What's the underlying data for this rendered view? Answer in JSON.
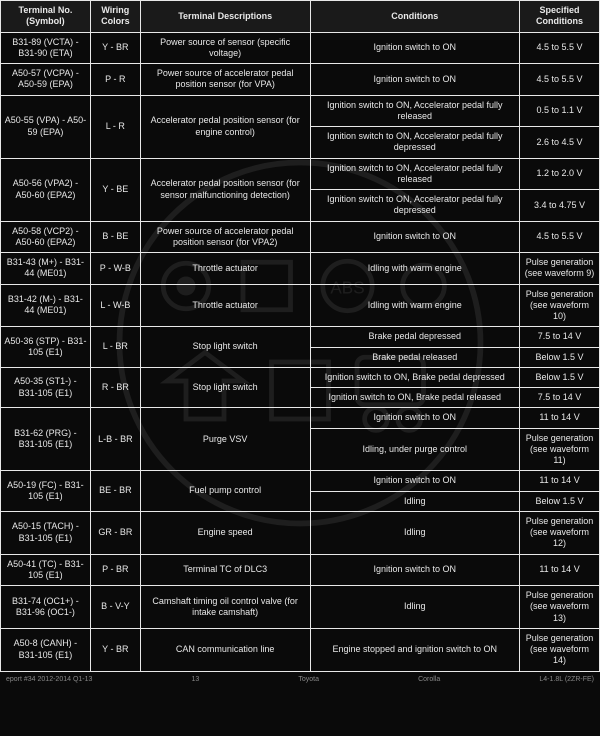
{
  "headers": {
    "terminal": "Terminal No. (Symbol)",
    "wiring": "Wiring Colors",
    "desc": "Terminal Descriptions",
    "cond": "Conditions",
    "spec": "Specified Conditions"
  },
  "rows": [
    {
      "terminal": "B31-89 (VCTA) - B31-90 (ETA)",
      "wiring": "Y - BR",
      "desc": "Power source of sensor (specific voltage)",
      "sub": [
        {
          "cond": "Ignition switch to ON",
          "spec": "4.5 to 5.5 V"
        }
      ]
    },
    {
      "terminal": "A50-57 (VCPA) - A50-59 (EPA)",
      "wiring": "P - R",
      "desc": "Power source of accelerator pedal position sensor (for VPA)",
      "sub": [
        {
          "cond": "Ignition switch to ON",
          "spec": "4.5 to 5.5 V"
        }
      ]
    },
    {
      "terminal": "A50-55 (VPA) - A50-59 (EPA)",
      "wiring": "L - R",
      "desc": "Accelerator pedal position sensor (for engine control)",
      "sub": [
        {
          "cond": "Ignition switch to ON, Accelerator pedal fully released",
          "spec": "0.5 to 1.1 V"
        },
        {
          "cond": "Ignition switch to ON, Accelerator pedal fully depressed",
          "spec": "2.6 to 4.5 V"
        }
      ]
    },
    {
      "terminal": "A50-56 (VPA2) - A50-60 (EPA2)",
      "wiring": "Y - BE",
      "desc": "Accelerator pedal position sensor (for sensor malfunctioning detection)",
      "sub": [
        {
          "cond": "Ignition switch to ON, Accelerator pedal fully released",
          "spec": "1.2 to 2.0 V"
        },
        {
          "cond": "Ignition switch to ON, Accelerator pedal fully depressed",
          "spec": "3.4 to 4.75 V"
        }
      ]
    },
    {
      "terminal": "A50-58 (VCP2) - A50-60 (EPA2)",
      "wiring": "B - BE",
      "desc": "Power source of accelerator pedal position sensor (for VPA2)",
      "sub": [
        {
          "cond": "Ignition switch to ON",
          "spec": "4.5 to 5.5 V"
        }
      ]
    },
    {
      "terminal": "B31-43 (M+) - B31-44 (ME01)",
      "wiring": "P - W-B",
      "desc": "Throttle actuator",
      "sub": [
        {
          "cond": "Idling with warm engine",
          "spec": "Pulse generation (see waveform 9)"
        }
      ]
    },
    {
      "terminal": "B31-42 (M-) - B31-44 (ME01)",
      "wiring": "L - W-B",
      "desc": "Throttle actuator",
      "sub": [
        {
          "cond": "Idling with warm engine",
          "spec": "Pulse generation (see waveform 10)"
        }
      ]
    },
    {
      "terminal": "A50-36 (STP) - B31-105 (E1)",
      "wiring": "L - BR",
      "desc": "Stop light switch",
      "sub": [
        {
          "cond": "Brake pedal depressed",
          "spec": "7.5 to 14 V"
        },
        {
          "cond": "Brake pedal released",
          "spec": "Below 1.5 V"
        }
      ]
    },
    {
      "terminal": "A50-35 (ST1-) - B31-105 (E1)",
      "wiring": "R - BR",
      "desc": "Stop light switch",
      "sub": [
        {
          "cond": "Ignition switch to ON, Brake pedal depressed",
          "spec": "Below 1.5 V"
        },
        {
          "cond": "Ignition switch to ON, Brake pedal released",
          "spec": "7.5 to 14 V"
        }
      ]
    },
    {
      "terminal": "B31-62 (PRG) - B31-105 (E1)",
      "wiring": "L-B - BR",
      "desc": "Purge VSV",
      "sub": [
        {
          "cond": "Ignition switch to ON",
          "spec": "11 to 14 V"
        },
        {
          "cond": "Idling, under purge control",
          "spec": "Pulse generation (see waveform 11)"
        }
      ]
    },
    {
      "terminal": "A50-19 (FC) - B31-105 (E1)",
      "wiring": "BE - BR",
      "desc": "Fuel pump control",
      "sub": [
        {
          "cond": "Ignition switch to ON",
          "spec": "11 to 14 V"
        },
        {
          "cond": "Idling",
          "spec": "Below 1.5 V"
        }
      ]
    },
    {
      "terminal": "A50-15 (TACH) - B31-105 (E1)",
      "wiring": "GR - BR",
      "desc": "Engine speed",
      "sub": [
        {
          "cond": "Idling",
          "spec": "Pulse generation (see waveform 12)"
        }
      ]
    },
    {
      "terminal": "A50-41 (TC) - B31-105 (E1)",
      "wiring": "P - BR",
      "desc": "Terminal TC of DLC3",
      "sub": [
        {
          "cond": "Ignition switch to ON",
          "spec": "11 to 14 V"
        }
      ]
    },
    {
      "terminal": "B31-74 (OC1+) - B31-96 (OC1-)",
      "wiring": "B - V-Y",
      "desc": "Camshaft timing oil control valve (for intake camshaft)",
      "sub": [
        {
          "cond": "Idling",
          "spec": "Pulse generation (see waveform 13)"
        }
      ]
    },
    {
      "terminal": "A50-8 (CANH) - B31-105 (E1)",
      "wiring": "Y - BR",
      "desc": "CAN communication line",
      "sub": [
        {
          "cond": "Engine stopped and ignition switch to ON",
          "spec": "Pulse generation (see waveform 14)"
        }
      ]
    }
  ],
  "footer": {
    "left": "eport #34 2012-2014 Q1-13",
    "mid1": "13",
    "mid2": "Toyota",
    "mid3": "Corolla",
    "right": "L4-1.8L (2ZR-FE)"
  }
}
